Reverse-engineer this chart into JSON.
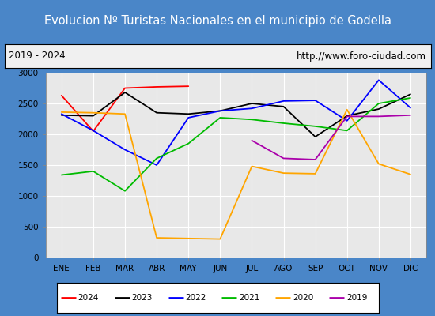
{
  "title": "Evolucion Nº Turistas Nacionales en el municipio de Godella",
  "subtitle_left": "2019 - 2024",
  "subtitle_right": "http://www.foro-ciudad.com",
  "months": [
    "ENE",
    "FEB",
    "MAR",
    "ABR",
    "MAY",
    "JUN",
    "JUL",
    "AGO",
    "SEP",
    "OCT",
    "NOV",
    "DIC"
  ],
  "series": {
    "2024": [
      2630,
      2050,
      2750,
      2770,
      2780,
      null,
      null,
      null,
      null,
      null,
      null,
      null
    ],
    "2023": [
      2310,
      2300,
      2680,
      2350,
      2330,
      2380,
      2500,
      2450,
      1960,
      2300,
      2410,
      2650
    ],
    "2022": [
      2330,
      2060,
      1750,
      1500,
      2270,
      2380,
      2420,
      2540,
      2550,
      2220,
      2880,
      2430
    ],
    "2021": [
      1340,
      1400,
      1080,
      1610,
      1850,
      2270,
      2240,
      2180,
      2130,
      2060,
      2500,
      2590
    ],
    "2020": [
      2360,
      2350,
      2330,
      320,
      310,
      300,
      1480,
      1370,
      1360,
      2400,
      1520,
      1350
    ],
    "2019": [
      null,
      null,
      null,
      null,
      null,
      null,
      1900,
      1610,
      1590,
      2290,
      2290,
      2310
    ]
  },
  "colors": {
    "2024": "#ff0000",
    "2023": "#000000",
    "2022": "#0000ff",
    "2021": "#00bb00",
    "2020": "#ffa500",
    "2019": "#aa00aa"
  },
  "ylim": [
    0,
    3000
  ],
  "yticks": [
    0,
    500,
    1000,
    1500,
    2000,
    2500,
    3000
  ],
  "title_bg": "#4a86c8",
  "title_color": "#ffffff",
  "subtitle_bg": "#f0f0f0",
  "plot_bg": "#e8e8e8",
  "grid_color": "#ffffff",
  "outer_bg": "#4a86c8",
  "title_fontsize": 10.5,
  "legend_order": [
    "2024",
    "2023",
    "2022",
    "2021",
    "2020",
    "2019"
  ]
}
